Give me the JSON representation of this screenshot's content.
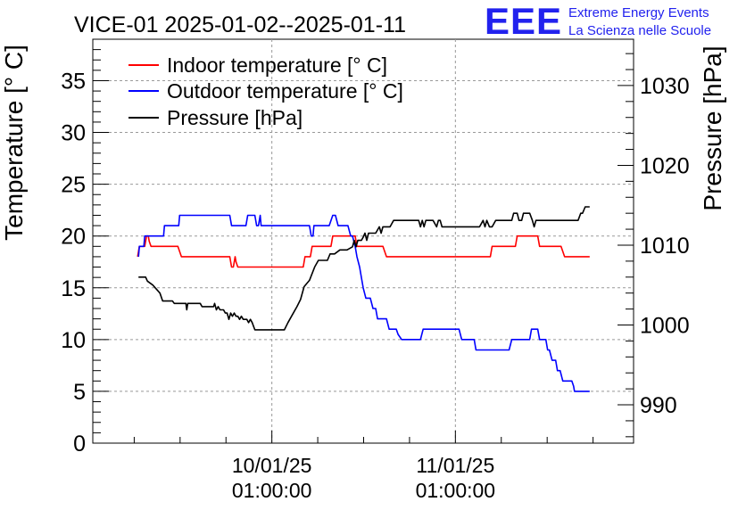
{
  "chart_data": {
    "type": "line",
    "title": "VICE-01 2025-01-02--2025-01-11",
    "ylabel_left": "Temperature [° C]",
    "ylabel_right": "Pressure [hPa]",
    "ylim_left": [
      0,
      39
    ],
    "ylim_right": [
      985.2,
      1035.8
    ],
    "xlim": [
      0,
      604
    ],
    "x_unit": "relative time index (1 unit per screen step)",
    "grid": true,
    "legend_position": "top-left",
    "yticks_left": [
      "0",
      "5",
      "10",
      "15",
      "20",
      "25",
      "30",
      "35"
    ],
    "yticks_right": [
      "990",
      "1000",
      "1010",
      "1020",
      "1030"
    ],
    "xticks": [
      {
        "x": 200,
        "line1": "10/01/25",
        "line2": "01:00:00"
      },
      {
        "x": 405,
        "line1": "11/01/25",
        "line2": "01:00:00"
      }
    ],
    "series": [
      {
        "name": "Indoor temperature [° C]",
        "color": "#ff0000",
        "axis": "left",
        "points": [
          [
            50,
            18
          ],
          [
            51,
            18.5
          ],
          [
            52,
            19
          ],
          [
            53,
            19
          ],
          [
            58,
            19
          ],
          [
            60,
            20
          ],
          [
            62,
            20
          ],
          [
            63,
            19.5
          ],
          [
            65,
            19
          ],
          [
            66,
            19
          ],
          [
            95,
            19
          ],
          [
            99,
            18
          ],
          [
            100,
            18
          ],
          [
            153,
            18
          ],
          [
            154,
            17.5
          ],
          [
            155,
            17
          ],
          [
            157,
            17
          ],
          [
            159,
            18
          ],
          [
            160,
            17.5
          ],
          [
            162,
            17
          ],
          [
            235,
            17
          ],
          [
            237,
            18
          ],
          [
            243,
            18
          ],
          [
            245,
            19
          ],
          [
            266,
            19
          ],
          [
            268,
            20
          ],
          [
            293,
            20
          ],
          [
            295,
            19
          ],
          [
            324,
            19
          ],
          [
            328,
            18
          ],
          [
            444,
            18
          ],
          [
            446,
            19
          ],
          [
            472,
            19
          ],
          [
            474,
            20
          ],
          [
            497,
            20
          ],
          [
            499,
            19
          ],
          [
            523,
            19
          ],
          [
            527,
            18
          ],
          [
            555,
            18
          ]
        ]
      },
      {
        "name": "Outdoor temperature [° C]",
        "color": "#0000ff",
        "axis": "left",
        "points": [
          [
            51,
            18
          ],
          [
            52,
            19
          ],
          [
            57,
            19
          ],
          [
            58,
            20
          ],
          [
            79,
            20
          ],
          [
            80,
            21
          ],
          [
            96,
            21
          ],
          [
            97,
            22
          ],
          [
            153,
            22
          ],
          [
            155,
            21
          ],
          [
            171,
            21
          ],
          [
            173,
            22
          ],
          [
            181,
            22
          ],
          [
            183,
            21
          ],
          [
            185,
            21
          ],
          [
            187,
            22
          ],
          [
            188,
            21
          ],
          [
            242,
            21
          ],
          [
            244,
            20
          ],
          [
            246,
            20
          ],
          [
            247,
            21
          ],
          [
            264,
            21
          ],
          [
            268,
            22
          ],
          [
            271,
            22
          ],
          [
            274,
            21
          ],
          [
            285,
            21
          ],
          [
            288,
            20
          ],
          [
            290,
            20
          ],
          [
            293,
            19
          ],
          [
            295,
            18
          ],
          [
            298,
            17
          ],
          [
            300,
            16
          ],
          [
            302,
            15
          ],
          [
            305,
            14
          ],
          [
            310,
            14
          ],
          [
            313,
            13
          ],
          [
            316,
            13
          ],
          [
            318,
            12
          ],
          [
            328,
            12
          ],
          [
            331,
            11
          ],
          [
            339,
            11
          ],
          [
            341,
            10.5
          ],
          [
            345,
            10
          ],
          [
            366,
            10
          ],
          [
            369,
            11
          ],
          [
            409,
            11
          ],
          [
            412,
            10
          ],
          [
            426,
            10
          ],
          [
            428,
            9
          ],
          [
            465,
            9
          ],
          [
            468,
            10
          ],
          [
            488,
            10
          ],
          [
            490,
            11
          ],
          [
            497,
            11
          ],
          [
            499,
            10
          ],
          [
            506,
            10
          ],
          [
            508,
            9
          ],
          [
            510,
            9
          ],
          [
            513,
            8
          ],
          [
            517,
            8
          ],
          [
            519,
            7
          ],
          [
            522,
            7
          ],
          [
            525,
            6
          ],
          [
            535,
            6
          ],
          [
            537,
            5.5
          ],
          [
            538,
            5
          ],
          [
            555,
            5
          ]
        ]
      },
      {
        "name": "Pressure [hPa]",
        "color": "#000000",
        "axis": "right",
        "points": [
          [
            51,
            1006
          ],
          [
            59,
            1006
          ],
          [
            61,
            1005.5
          ],
          [
            67,
            1005
          ],
          [
            71,
            1004.5
          ],
          [
            75,
            1004
          ],
          [
            78,
            1003
          ],
          [
            85,
            1003
          ],
          [
            89,
            1003
          ],
          [
            91,
            1002.7
          ],
          [
            104,
            1002.7
          ],
          [
            105,
            1001.9
          ],
          [
            106,
            1002.7
          ],
          [
            120,
            1002.7
          ],
          [
            122,
            1002.3
          ],
          [
            135,
            1002.3
          ],
          [
            136,
            1002.7
          ],
          [
            138,
            1001.9
          ],
          [
            140,
            1002.3
          ],
          [
            142,
            1001.9
          ],
          [
            146,
            1001.9
          ],
          [
            148,
            1001.5
          ],
          [
            150,
            1001.5
          ],
          [
            152,
            1000.7
          ],
          [
            154,
            1001.5
          ],
          [
            156,
            1001.1
          ],
          [
            158,
            1001.5
          ],
          [
            160,
            1001.1
          ],
          [
            162,
            1001.1
          ],
          [
            164,
            1000.7
          ],
          [
            166,
            1001.1
          ],
          [
            168,
            1000.7
          ],
          [
            172,
            1000.7
          ],
          [
            174,
            1000.3
          ],
          [
            176,
            1000.7
          ],
          [
            178,
            1000.3
          ],
          [
            181,
            999.4
          ],
          [
            214,
            999.4
          ],
          [
            218,
            1000.3
          ],
          [
            222,
            1001.1
          ],
          [
            228,
            1002.3
          ],
          [
            232,
            1003.2
          ],
          [
            236,
            1004.8
          ],
          [
            242,
            1005.6
          ],
          [
            248,
            1007.3
          ],
          [
            252,
            1008.1
          ],
          [
            262,
            1008.1
          ],
          [
            265,
            1008.9
          ],
          [
            270,
            1008.9
          ],
          [
            276,
            1009.4
          ],
          [
            284,
            1009.4
          ],
          [
            290,
            1009.8
          ],
          [
            292,
            1010.6
          ],
          [
            294,
            1009.8
          ],
          [
            296,
            1010.6
          ],
          [
            300,
            1010.6
          ],
          [
            302,
            1011
          ],
          [
            304,
            1011.5
          ],
          [
            306,
            1010.6
          ],
          [
            308,
            1011.5
          ],
          [
            316,
            1011.5
          ],
          [
            320,
            1012.3
          ],
          [
            322,
            1011.5
          ],
          [
            324,
            1012.3
          ],
          [
            332,
            1012.3
          ],
          [
            336,
            1013.1
          ],
          [
            364,
            1013.1
          ],
          [
            366,
            1012.3
          ],
          [
            368,
            1013.1
          ],
          [
            370,
            1012.3
          ],
          [
            372,
            1013.1
          ],
          [
            380,
            1013.1
          ],
          [
            384,
            1012.3
          ],
          [
            386,
            1013.1
          ],
          [
            388,
            1013.1
          ],
          [
            390,
            1012.3
          ],
          [
            432,
            1012.3
          ],
          [
            436,
            1013.1
          ],
          [
            438,
            1012.3
          ],
          [
            440,
            1013.1
          ],
          [
            443,
            1012.3
          ],
          [
            446,
            1012.3
          ],
          [
            450,
            1013.1
          ],
          [
            468,
            1013.1
          ],
          [
            470,
            1014
          ],
          [
            474,
            1014
          ],
          [
            476,
            1013.1
          ],
          [
            479,
            1013.1
          ],
          [
            481,
            1014
          ],
          [
            488,
            1014
          ],
          [
            491,
            1013.1
          ],
          [
            493,
            1012.3
          ],
          [
            495,
            1013.1
          ],
          [
            497,
            1013.1
          ],
          [
            499,
            1013.1
          ],
          [
            542,
            1013.1
          ],
          [
            545,
            1014
          ],
          [
            547,
            1014
          ],
          [
            550,
            1014.8
          ],
          [
            555,
            1014.8
          ]
        ]
      }
    ]
  },
  "logo": {
    "mark": "EEE",
    "line1": "Extreme Energy Events",
    "line2": "La Scienza nelle Scuole"
  }
}
